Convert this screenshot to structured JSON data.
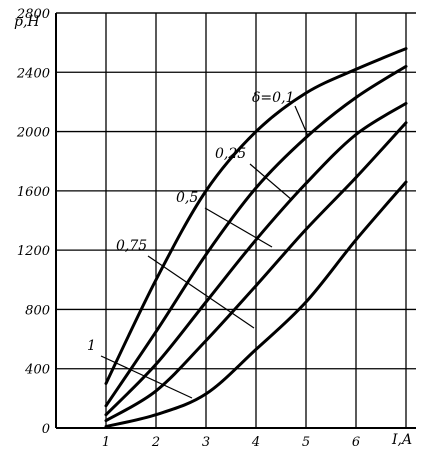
{
  "chart_data": {
    "type": "line",
    "title": "",
    "ylabel": "p,H",
    "xlabel": "I,A",
    "xlim": [
      0,
      7.2
    ],
    "ylim": [
      0,
      2800
    ],
    "xticks": [
      1,
      2,
      3,
      4,
      5,
      6
    ],
    "yticks": [
      0,
      400,
      800,
      1200,
      1600,
      2000,
      2400,
      2800
    ],
    "grid": true,
    "series": [
      {
        "name": "δ=0,1",
        "x": [
          1,
          2,
          3,
          4,
          5,
          6,
          7
        ],
        "values": [
          300,
          1000,
          1600,
          2000,
          2260,
          2420,
          2560
        ]
      },
      {
        "name": "0,25",
        "x": [
          1,
          2,
          3,
          4,
          5,
          6,
          7
        ],
        "values": [
          150,
          650,
          1170,
          1620,
          1960,
          2230,
          2440
        ]
      },
      {
        "name": "0,5",
        "x": [
          1,
          2,
          3,
          4,
          5,
          6,
          7
        ],
        "values": [
          90,
          430,
          850,
          1270,
          1650,
          1980,
          2190
        ]
      },
      {
        "name": "0,75",
        "x": [
          1,
          2,
          3,
          4,
          5,
          6,
          7
        ],
        "values": [
          50,
          250,
          590,
          960,
          1340,
          1690,
          2060
        ]
      },
      {
        "name": "1",
        "x": [
          1,
          2,
          3,
          4,
          5,
          6,
          7
        ],
        "values": [
          10,
          90,
          230,
          530,
          850,
          1270,
          1660
        ]
      }
    ]
  }
}
